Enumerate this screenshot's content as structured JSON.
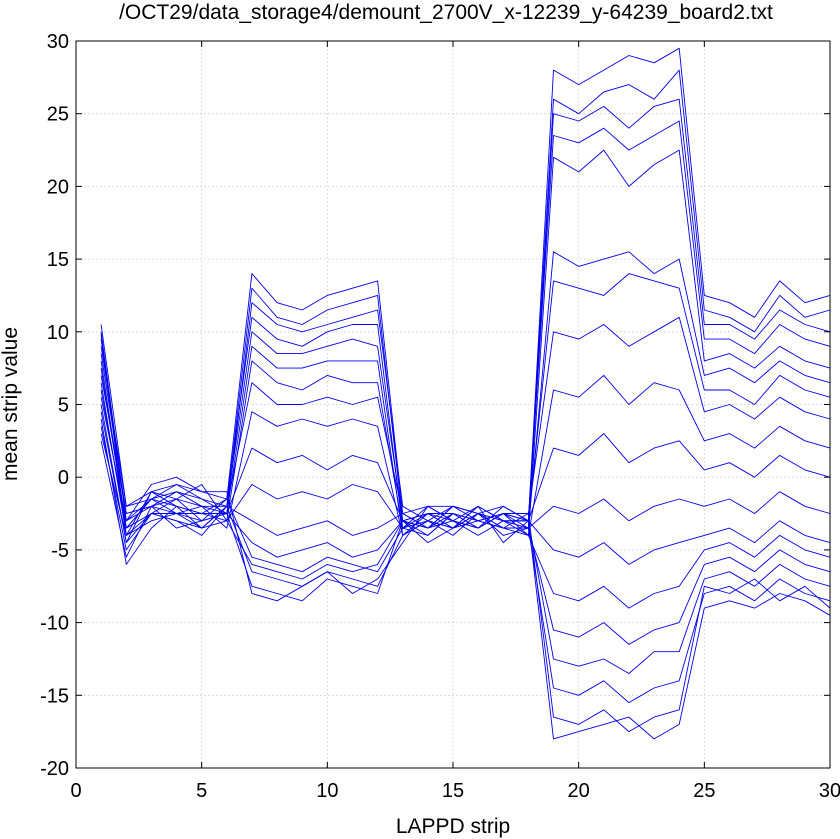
{
  "chart_data": {
    "type": "line",
    "title": "/OCT29/data_storage4/demount_2700V_x-12239_y-64239_board2.txt",
    "xlabel": "LAPPD strip",
    "ylabel": "mean strip value",
    "xlim": [
      0,
      30
    ],
    "ylim": [
      -20,
      30
    ],
    "xticks": [
      0,
      5,
      10,
      15,
      20,
      25,
      30
    ],
    "yticks": [
      -20,
      -15,
      -10,
      -5,
      0,
      5,
      10,
      15,
      20,
      25,
      30
    ],
    "grid": true,
    "line_color": "#0000ee",
    "x": [
      1,
      2,
      3,
      4,
      5,
      6,
      7,
      8,
      9,
      10,
      11,
      12,
      13,
      14,
      15,
      16,
      17,
      18,
      19,
      20,
      21,
      22,
      23,
      24,
      25,
      26,
      27,
      28,
      29,
      30
    ],
    "series": [
      {
        "values": [
          10.5,
          -2.0,
          -1.0,
          -0.5,
          -1.0,
          -1.5,
          14.0,
          12.0,
          11.5,
          12.5,
          13.0,
          13.5,
          -2.5,
          -2.0,
          -2.0,
          -2.5,
          -2.0,
          -3.0,
          28.0,
          27.0,
          28.0,
          29.0,
          28.5,
          29.5,
          12.5,
          12.0,
          11.0,
          13.5,
          12.0,
          12.5
        ]
      },
      {
        "values": [
          9.5,
          -3.0,
          -1.5,
          -1.0,
          -1.5,
          -2.0,
          13.0,
          11.0,
          10.5,
          11.5,
          12.0,
          12.5,
          -3.0,
          -2.5,
          -2.5,
          -3.0,
          -2.5,
          -3.0,
          26.0,
          25.0,
          26.5,
          27.0,
          26.0,
          28.0,
          11.5,
          11.0,
          10.0,
          12.5,
          11.0,
          11.5
        ]
      },
      {
        "values": [
          8.5,
          -2.5,
          -2.0,
          -1.0,
          -2.0,
          -2.5,
          12.0,
          10.5,
          10.0,
          10.5,
          11.0,
          11.5,
          -2.0,
          -3.0,
          -2.0,
          -2.5,
          -3.0,
          -3.5,
          25.0,
          24.5,
          25.5,
          24.0,
          25.5,
          26.0,
          10.5,
          10.5,
          9.5,
          11.5,
          10.5,
          10.0
        ]
      },
      {
        "values": [
          7.5,
          -3.5,
          -1.5,
          -2.0,
          -2.5,
          -1.5,
          11.0,
          9.5,
          9.0,
          10.0,
          10.5,
          10.5,
          -3.5,
          -2.5,
          -3.0,
          -2.0,
          -3.0,
          -3.0,
          23.5,
          23.0,
          24.0,
          22.5,
          23.5,
          24.5,
          9.5,
          9.5,
          8.5,
          10.5,
          9.5,
          9.0
        ]
      },
      {
        "values": [
          6.5,
          -4.0,
          -2.5,
          -1.5,
          -2.0,
          -2.0,
          10.0,
          8.5,
          8.5,
          9.0,
          9.5,
          9.0,
          -3.0,
          -3.5,
          -2.5,
          -3.0,
          -2.5,
          -4.0,
          22.0,
          21.0,
          22.5,
          20.0,
          21.5,
          22.5,
          8.0,
          8.5,
          7.5,
          9.0,
          8.0,
          7.5
        ]
      },
      {
        "values": [
          5.5,
          -3.0,
          -2.0,
          -2.5,
          -3.0,
          -2.5,
          9.0,
          7.5,
          7.5,
          8.0,
          8.0,
          8.0,
          -4.0,
          -3.0,
          -3.5,
          -2.5,
          -3.5,
          -3.5,
          15.5,
          14.5,
          15.0,
          15.5,
          14.0,
          15.0,
          7.0,
          7.5,
          6.5,
          8.0,
          7.0,
          6.5
        ]
      },
      {
        "values": [
          4.5,
          -4.5,
          -1.0,
          -2.0,
          -2.5,
          -3.0,
          8.0,
          6.5,
          6.0,
          7.0,
          6.5,
          6.5,
          -3.5,
          -2.0,
          -3.0,
          -3.5,
          -2.0,
          -3.0,
          13.5,
          13.0,
          12.5,
          14.0,
          13.5,
          13.0,
          6.0,
          6.0,
          5.0,
          7.0,
          6.0,
          5.5
        ]
      },
      {
        "values": [
          3.5,
          -5.0,
          -2.5,
          -3.0,
          -3.5,
          -2.0,
          6.5,
          5.0,
          5.0,
          5.5,
          5.0,
          5.5,
          -2.5,
          -3.5,
          -2.0,
          -3.0,
          -3.5,
          -2.5,
          10.0,
          9.5,
          10.5,
          9.0,
          10.0,
          11.0,
          4.5,
          5.0,
          4.0,
          5.5,
          4.5,
          4.0
        ]
      },
      {
        "values": [
          3.0,
          -4.0,
          -3.0,
          -2.5,
          -2.0,
          -3.5,
          4.5,
          3.5,
          4.0,
          3.5,
          4.0,
          3.5,
          -4.0,
          -2.5,
          -3.5,
          -2.0,
          -3.0,
          -4.0,
          6.0,
          5.5,
          7.0,
          5.0,
          6.5,
          6.0,
          2.5,
          3.0,
          2.0,
          3.5,
          2.5,
          2.0
        ]
      },
      {
        "values": [
          2.5,
          -5.5,
          -2.0,
          -3.5,
          -3.0,
          -2.5,
          2.0,
          1.0,
          1.5,
          0.5,
          1.5,
          1.0,
          -3.0,
          -4.0,
          -2.5,
          -3.5,
          -2.5,
          -3.0,
          2.0,
          1.5,
          3.0,
          1.0,
          2.0,
          2.5,
          0.5,
          1.0,
          0.0,
          1.5,
          0.5,
          0.0
        ]
      },
      {
        "values": [
          4.0,
          -6.0,
          -3.5,
          -2.0,
          -3.5,
          -3.0,
          -0.5,
          -1.5,
          -1.0,
          -1.5,
          -0.5,
          -1.0,
          -3.5,
          -3.0,
          -4.0,
          -2.5,
          -4.0,
          -3.5,
          -2.0,
          -2.5,
          -1.5,
          -3.0,
          -2.0,
          -1.5,
          -2.0,
          -1.5,
          -2.5,
          -1.0,
          -2.0,
          -2.5
        ]
      },
      {
        "values": [
          5.0,
          -4.5,
          -2.5,
          -3.0,
          -4.0,
          -2.0,
          -3.0,
          -4.0,
          -3.5,
          -3.0,
          -4.0,
          -3.5,
          -2.5,
          -3.5,
          -3.0,
          -4.0,
          -3.0,
          -3.0,
          -5.0,
          -5.5,
          -4.5,
          -6.0,
          -5.0,
          -4.5,
          -4.0,
          -3.5,
          -4.5,
          -3.0,
          -4.0,
          -4.5
        ]
      },
      {
        "values": [
          6.0,
          -3.5,
          -1.5,
          -2.5,
          -2.5,
          -2.5,
          -4.5,
          -5.5,
          -5.0,
          -4.5,
          -5.5,
          -5.0,
          -3.0,
          -2.5,
          -3.5,
          -3.0,
          -3.5,
          -4.0,
          -8.0,
          -8.5,
          -7.5,
          -9.0,
          -8.0,
          -7.5,
          -5.0,
          -4.5,
          -5.5,
          -4.0,
          -5.0,
          -5.5
        ]
      },
      {
        "values": [
          7.0,
          -2.5,
          -2.0,
          -1.5,
          -3.0,
          -1.5,
          -5.5,
          -6.0,
          -6.5,
          -5.5,
          -6.0,
          -6.5,
          -3.5,
          -4.0,
          -2.5,
          -3.5,
          -2.5,
          -3.5,
          -10.5,
          -11.0,
          -10.0,
          -11.5,
          -10.5,
          -10.0,
          -6.0,
          -5.5,
          -6.5,
          -5.0,
          -6.0,
          -6.5
        ]
      },
      {
        "values": [
          8.0,
          -3.5,
          -2.5,
          -2.5,
          -3.5,
          -2.0,
          -6.5,
          -7.0,
          -7.5,
          -6.5,
          -7.0,
          -7.5,
          -4.0,
          -3.0,
          -3.5,
          -2.5,
          -3.0,
          -3.0,
          -12.5,
          -13.0,
          -12.5,
          -13.5,
          -12.0,
          -12.0,
          -7.0,
          -6.5,
          -7.5,
          -6.0,
          -7.0,
          -7.5
        ]
      },
      {
        "values": [
          9.0,
          -2.0,
          -1.5,
          -0.5,
          -1.5,
          -2.5,
          -7.5,
          -8.0,
          -8.5,
          -7.0,
          -7.5,
          -8.0,
          -3.0,
          -3.5,
          -2.0,
          -2.5,
          -3.5,
          -3.5,
          -14.5,
          -15.0,
          -14.0,
          -15.5,
          -14.5,
          -14.0,
          -8.0,
          -7.5,
          -8.5,
          -7.0,
          -8.0,
          -8.5
        ]
      },
      {
        "values": [
          10.0,
          -3.0,
          -0.5,
          0.0,
          -1.0,
          -1.0,
          -8.0,
          -8.5,
          -7.5,
          -6.5,
          -8.0,
          -7.0,
          -4.5,
          -2.0,
          -3.0,
          -3.5,
          -2.5,
          -2.5,
          -16.5,
          -17.0,
          -16.0,
          -17.5,
          -16.5,
          -16.0,
          -7.5,
          -8.0,
          -7.0,
          -8.5,
          -7.5,
          -9.0
        ]
      },
      {
        "values": [
          9.8,
          -4.0,
          -1.0,
          -1.5,
          -0.5,
          -3.0,
          -6.0,
          -6.5,
          -7.0,
          -6.0,
          -6.5,
          -6.0,
          -3.0,
          -4.5,
          -3.5,
          -2.0,
          -4.5,
          -3.0,
          -18.0,
          -17.5,
          -17.0,
          -16.5,
          -18.0,
          -17.0,
          -9.0,
          -8.5,
          -9.0,
          -8.0,
          -8.5,
          -9.5
        ]
      }
    ]
  }
}
